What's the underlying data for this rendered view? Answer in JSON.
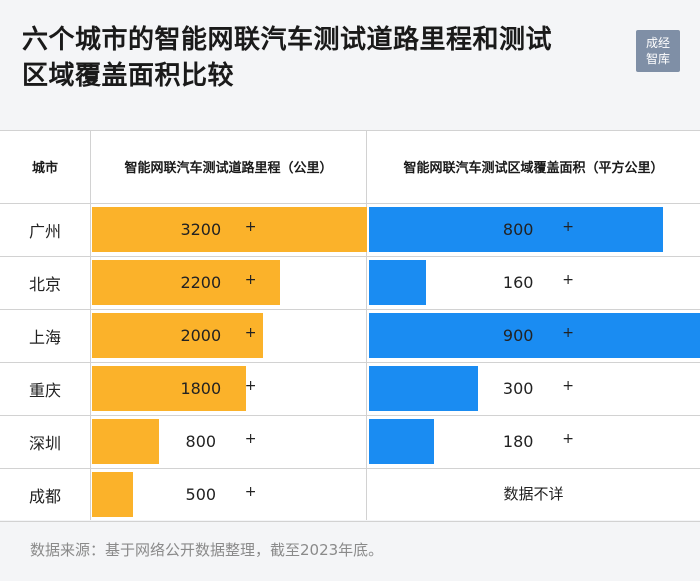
{
  "title_lines": [
    "六个城市的智能网联汽车测试道路里程和测试",
    "区域覆盖面积比较"
  ],
  "logo": [
    "成经",
    "智库"
  ],
  "table": {
    "headers": [
      "城市",
      "智能网联汽车测试道路里程（公里）",
      "智能网联汽车测试区域覆盖面积（平方公里）"
    ]
  },
  "chart_data": {
    "type": "bar",
    "orientation": "horizontal",
    "title": "六个城市的智能网联汽车测试道路里程和测试区域覆盖面积比较",
    "categories": [
      "广州",
      "北京",
      "上海",
      "重庆",
      "深圳",
      "成都"
    ],
    "series": [
      {
        "name": "智能网联汽车测试道路里程（公里）",
        "values": [
          3200,
          2200,
          2000,
          1800,
          800,
          500
        ],
        "labels": [
          "3200",
          "2200",
          "2000",
          "1800",
          "800",
          "500"
        ],
        "plus": true,
        "color": "#fbb22a",
        "max": 3200
      },
      {
        "name": "智能网联汽车测试区域覆盖面积（平方公里）",
        "values": [
          800,
          160,
          900,
          300,
          180,
          null
        ],
        "labels": [
          "800",
          "160",
          "900",
          "300",
          "180",
          null
        ],
        "plus": true,
        "na_text": "数据不详",
        "color": "#1a8cf2",
        "max": 900
      }
    ]
  },
  "note": "数据来源：基于网络公开数据整理，截至2023年底。"
}
